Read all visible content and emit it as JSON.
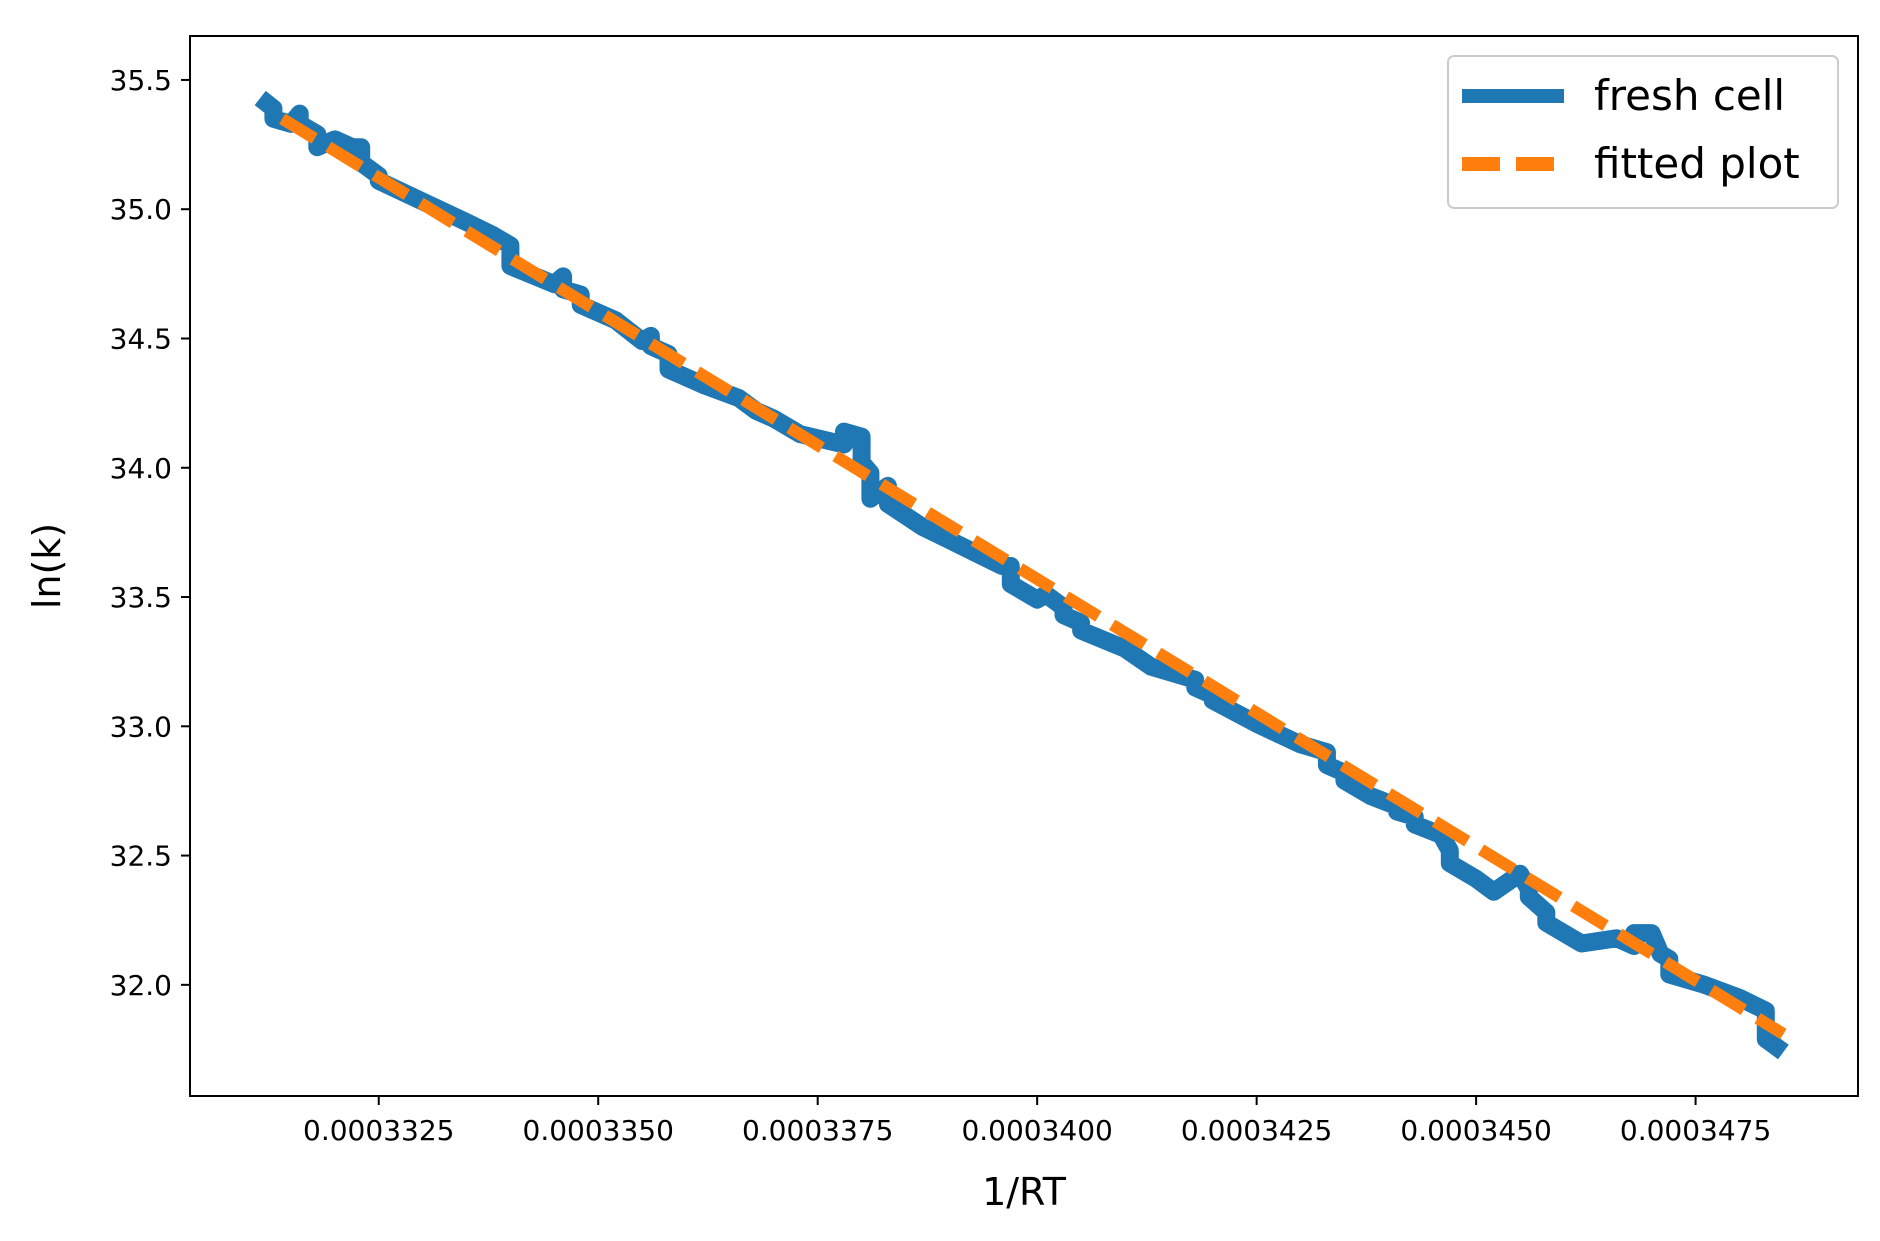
{
  "chart_data": {
    "type": "line",
    "title": "",
    "xlabel": "1/RT",
    "ylabel": "ln(k)",
    "xlim": [
      0.00033035,
      0.00034935
    ],
    "ylim": [
      31.57,
      35.67
    ],
    "xticks": [
      0.0003325,
      0.000335,
      0.0003375,
      0.00034,
      0.0003425,
      0.000345,
      0.0003475
    ],
    "xtick_labels": [
      "0.0003325",
      "0.0003350",
      "0.0003375",
      "0.0003400",
      "0.0003425",
      "0.0003450",
      "0.0003475"
    ],
    "yticks": [
      32.0,
      32.5,
      33.0,
      33.5,
      34.0,
      34.5,
      35.0,
      35.5
    ],
    "ytick_labels": [
      "32.0",
      "32.5",
      "33.0",
      "33.5",
      "34.0",
      "34.5",
      "35.0",
      "35.5"
    ],
    "grid": false,
    "legend_position": "top-right",
    "series": [
      {
        "name": "fresh cell",
        "style": "solid",
        "color": "#1f77b4",
        "x": [
          0.00033115,
          0.0003313,
          0.0003313,
          0.0003315,
          0.0003316,
          0.0003316,
          0.0003318,
          0.0003318,
          0.000332,
          0.0003322,
          0.0003323,
          0.0003323,
          0.0003325,
          0.0003325,
          0.000333,
          0.0003335,
          0.0003338,
          0.000334,
          0.000334,
          0.0003345,
          0.0003346,
          0.0003346,
          0.0003348,
          0.0003348,
          0.0003352,
          0.0003355,
          0.0003356,
          0.0003356,
          0.0003358,
          0.0003358,
          0.0003362,
          0.0003366,
          0.0003368,
          0.000337,
          0.0003373,
          0.0003378,
          0.0003378,
          0.000338,
          0.000338,
          0.000338,
          0.0003381,
          0.0003381,
          0.0003383,
          0.0003383,
          0.0003387,
          0.000339,
          0.0003393,
          0.0003396,
          0.0003397,
          0.0003397,
          0.00034,
          0.0003401,
          0.0003403,
          0.0003403,
          0.0003405,
          0.0003405,
          0.000341,
          0.0003413,
          0.0003418,
          0.0003418,
          0.000342,
          0.000342,
          0.0003425,
          0.000343,
          0.0003433,
          0.0003433,
          0.0003435,
          0.0003435,
          0.0003438,
          0.0003441,
          0.0003441,
          0.0003443,
          0.0003443,
          0.0003446,
          0.0003447,
          0.0003447,
          0.000345,
          0.0003452,
          0.0003455,
          0.0003456,
          0.0003456,
          0.0003458,
          0.0003458,
          0.0003462,
          0.0003466,
          0.0003468,
          0.0003468,
          0.000347,
          0.0003471,
          0.0003472,
          0.0003472,
          0.0003476,
          0.000348,
          0.0003483,
          0.0003483,
          0.0003485
        ],
        "y": [
          35.43,
          35.39,
          35.35,
          35.33,
          35.37,
          35.33,
          35.29,
          35.24,
          35.27,
          35.24,
          35.24,
          35.18,
          35.13,
          35.11,
          35.03,
          34.95,
          34.9,
          34.86,
          34.78,
          34.71,
          34.74,
          34.69,
          34.67,
          34.63,
          34.57,
          34.49,
          34.51,
          34.47,
          34.44,
          34.38,
          34.32,
          34.27,
          34.22,
          34.19,
          34.13,
          34.09,
          34.14,
          34.12,
          34.07,
          34.02,
          33.98,
          33.88,
          33.93,
          33.86,
          33.77,
          33.72,
          33.67,
          33.62,
          33.62,
          33.55,
          33.49,
          33.51,
          33.46,
          33.43,
          33.4,
          33.37,
          33.3,
          33.23,
          33.18,
          33.15,
          33.12,
          33.1,
          33.01,
          32.93,
          32.9,
          32.85,
          32.82,
          32.79,
          32.73,
          32.69,
          32.67,
          32.65,
          32.62,
          32.58,
          32.52,
          32.47,
          32.41,
          32.36,
          32.43,
          32.37,
          32.34,
          32.28,
          32.24,
          32.16,
          32.18,
          32.15,
          32.2,
          32.2,
          32.12,
          32.1,
          32.04,
          32.0,
          31.95,
          31.9,
          31.79,
          31.74
        ]
      },
      {
        "name": "fitted plot",
        "style": "dashed",
        "color": "#ff7f0e",
        "x": [
          0.0003314,
          0.0003485
        ],
        "y": [
          35.35,
          31.81
        ]
      }
    ]
  }
}
